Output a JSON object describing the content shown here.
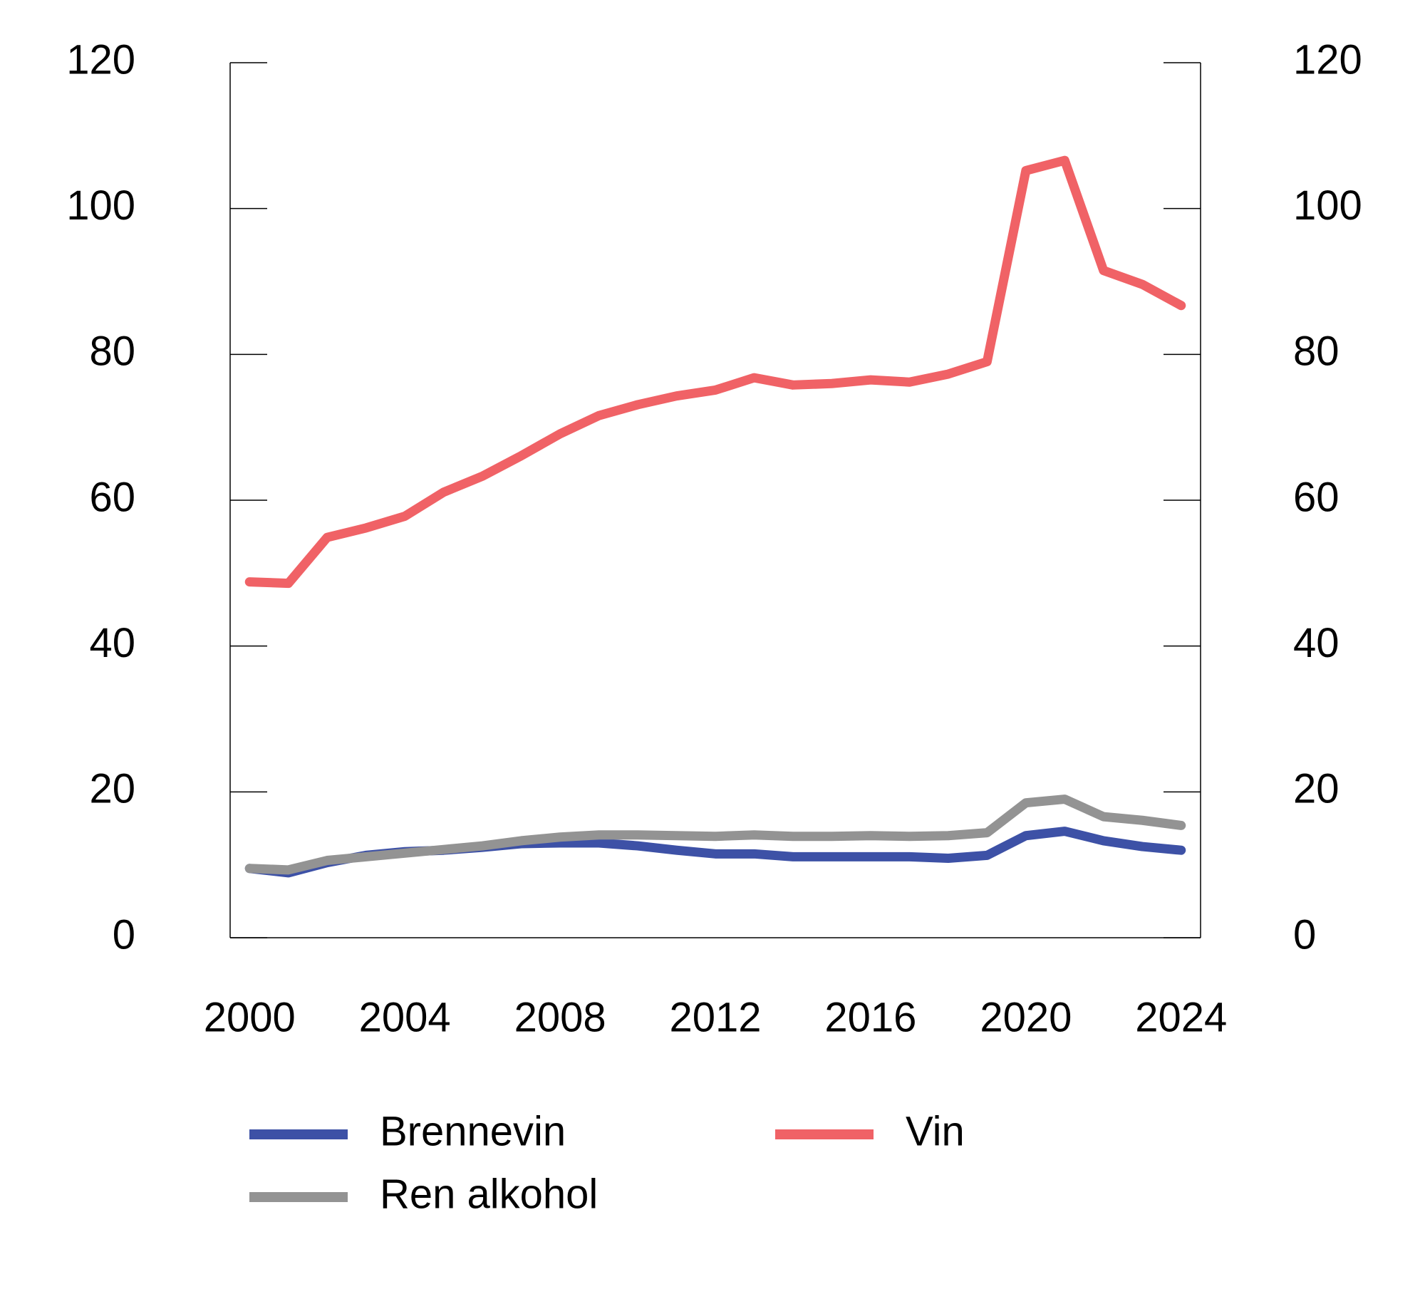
{
  "chart_data": {
    "type": "line",
    "x": [
      2000,
      2001,
      2002,
      2003,
      2004,
      2005,
      2006,
      2007,
      2008,
      2009,
      2010,
      2011,
      2012,
      2013,
      2014,
      2015,
      2016,
      2017,
      2018,
      2019,
      2020,
      2021,
      2022,
      2023,
      2024
    ],
    "xlim": [
      1999.5,
      2024.5
    ],
    "xticks": [
      2000,
      2004,
      2008,
      2012,
      2016,
      2020,
      2024
    ],
    "ylim": [
      0,
      120
    ],
    "yticks": [
      0,
      20,
      40,
      60,
      80,
      100,
      120
    ],
    "y2lim": [
      0,
      120
    ],
    "y2ticks": [
      0,
      20,
      40,
      60,
      80,
      100,
      120
    ],
    "series": [
      {
        "name": "Brennevin",
        "color": "#3d51a6",
        "values": [
          9.5,
          8.9,
          10.3,
          11.3,
          11.8,
          12.0,
          12.4,
          12.9,
          13.0,
          13.0,
          12.6,
          12.0,
          11.5,
          11.5,
          11.1,
          11.1,
          11.1,
          11.1,
          10.9,
          11.3,
          14.0,
          14.6,
          13.3,
          12.5,
          12.0
        ]
      },
      {
        "name": "Vin",
        "color": "#f06266",
        "values": [
          48.8,
          48.6,
          54.9,
          56.2,
          57.8,
          61.1,
          63.3,
          66.1,
          69.1,
          71.6,
          73.1,
          74.3,
          75.1,
          76.8,
          75.8,
          76.0,
          76.5,
          76.2,
          77.3,
          79.0,
          105.2,
          106.6,
          91.5,
          89.6,
          86.7
        ]
      },
      {
        "name": "Ren alkohol",
        "color": "#939393",
        "values": [
          9.5,
          9.3,
          10.6,
          11.1,
          11.6,
          12.1,
          12.6,
          13.3,
          13.8,
          14.1,
          14.1,
          14.0,
          13.9,
          14.1,
          13.9,
          13.9,
          14.0,
          13.9,
          14.0,
          14.4,
          18.5,
          19.0,
          16.6,
          16.1,
          15.4
        ]
      }
    ]
  }
}
